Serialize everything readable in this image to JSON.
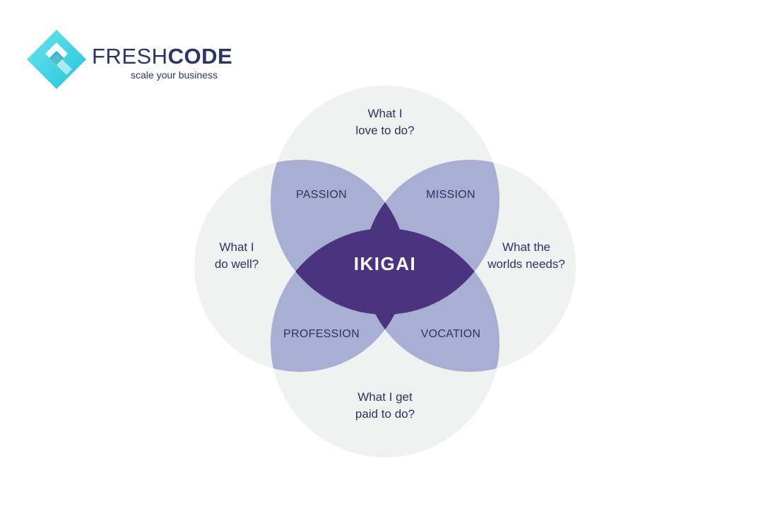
{
  "logo": {
    "brand_light": "FRESH",
    "brand_bold": "CODE",
    "tagline": "scale your business",
    "icon": "diamond-arrow-logo-icon"
  },
  "diagram": {
    "circles": {
      "top": "What I\nlove to do?",
      "left": "What I\ndo well?",
      "right": "What the\nworlds needs?",
      "bottom": "What I get\npaid to do?"
    },
    "overlaps": {
      "top_left": "PASSION",
      "top_right": "MISSION",
      "bottom_left": "PROFESSION",
      "bottom_right": "VOCATION"
    },
    "center": "IKIGAI"
  },
  "colors": {
    "circle": "#f0f1f1",
    "overlap": "#a9aed3",
    "center": "#4a347f",
    "text": "#2d3366",
    "logo_cyan": "#39d3e3"
  }
}
